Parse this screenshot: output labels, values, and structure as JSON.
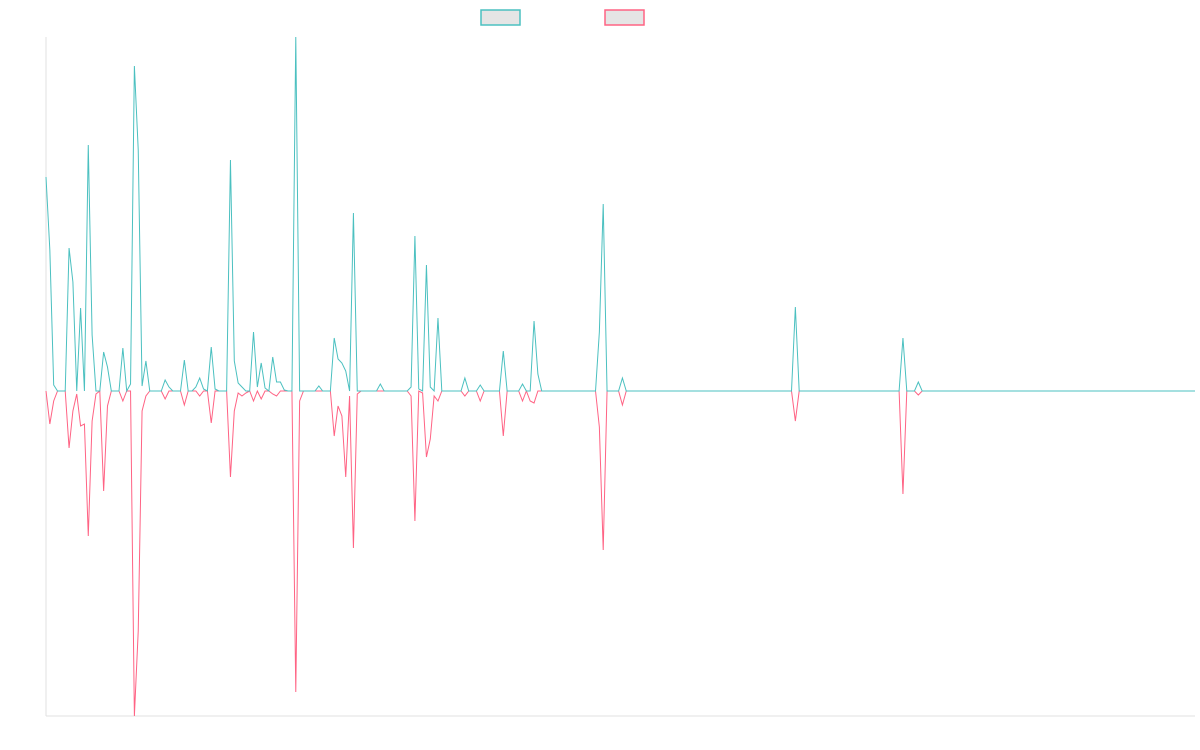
{
  "chart_data": {
    "type": "line",
    "title": "",
    "xlabel": "",
    "ylabel": "",
    "grid": false,
    "legend_position": "top-center",
    "num_points": 300,
    "ylim": [
      -325,
      354
    ],
    "series": [
      {
        "name": "",
        "color": "#4bc0c0",
        "legend_fill": "#e5e5e5",
        "sparse_values": {
          "0": 214,
          "1": 141,
          "2": 6,
          "6": 143,
          "7": 109,
          "8": 0,
          "9": 83,
          "10": 0,
          "11": 246,
          "12": 56,
          "13": 0,
          "15": 39,
          "16": 24,
          "17": 0,
          "20": 43,
          "21": 0,
          "22": 7,
          "23": 325,
          "24": 241,
          "25": 5,
          "26": 30,
          "27": 0,
          "31": 11,
          "32": 4,
          "36": 31,
          "37": 0,
          "39": 4,
          "40": 13,
          "41": 2,
          "43": 44,
          "44": 2,
          "48": 231,
          "49": 30,
          "50": 8,
          "51": 4,
          "54": 59,
          "55": 4,
          "56": 28,
          "57": 3,
          "59": 34,
          "60": 9,
          "61": 9,
          "62": 1,
          "65": 354,
          "71": 5,
          "75": 53,
          "76": 32,
          "77": 28,
          "78": 20,
          "80": 178,
          "87": 7,
          "95": 4,
          "96": 155,
          "97": 2,
          "99": 126,
          "100": 4,
          "102": 73,
          "109": 13,
          "113": 6,
          "119": 40,
          "124": 7,
          "127": 70,
          "128": 17,
          "144": 59,
          "145": 187,
          "150": 13,
          "195": 84,
          "223": 53,
          "227": 9
        }
      },
      {
        "name": "",
        "color": "#ff6384",
        "legend_fill": "#e5e5e5",
        "sparse_values": {
          "1": -33,
          "2": -10,
          "6": -57,
          "7": -20,
          "8": -3,
          "9": -35,
          "10": -33,
          "11": -145,
          "12": -30,
          "13": -3,
          "15": -100,
          "16": -15,
          "20": -10,
          "23": -325,
          "24": -240,
          "25": -20,
          "26": -5,
          "31": -8,
          "36": -14,
          "40": -5,
          "43": -32,
          "48": -86,
          "49": -20,
          "50": -2,
          "51": -5,
          "52": -2,
          "54": -10,
          "56": -8,
          "59": -3,
          "60": -5,
          "65": -301,
          "66": -10,
          "75": -45,
          "76": -15,
          "77": -25,
          "78": -86,
          "79": -5,
          "80": -157,
          "81": -3,
          "95": -5,
          "96": -130,
          "98": -2,
          "99": -66,
          "100": -48,
          "101": -5,
          "102": -10,
          "109": -5,
          "113": -10,
          "119": -45,
          "124": -10,
          "126": -10,
          "127": -12,
          "144": -36,
          "145": -159,
          "150": -14,
          "195": -30,
          "223": -103,
          "227": -4
        }
      }
    ]
  }
}
